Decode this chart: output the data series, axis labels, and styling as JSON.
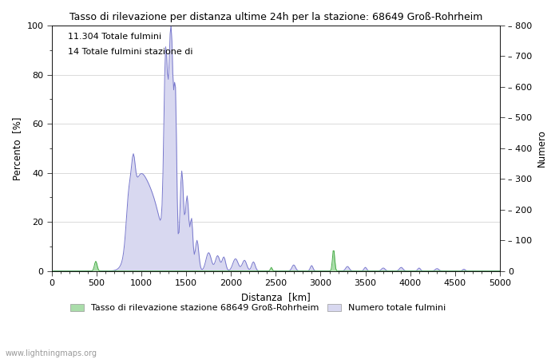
{
  "title": "Tasso di rilevazione per distanza ultime 24h per la stazione: 68649 Groß-Rohrheim",
  "xlabel": "Distanza  [km]",
  "ylabel_left": "Percento  [%]",
  "ylabel_right": "Numero",
  "annotation_line1": "11.304 Totale fulmini",
  "annotation_line2": "14 Totale fulmini stazione di",
  "legend_green": "Tasso di rilevazione stazione 68649 Groß-Rohrheim",
  "legend_blue": "Numero totale fulmini",
  "watermark": "www.lightningmaps.org",
  "xlim": [
    0,
    5000
  ],
  "ylim_left": [
    0,
    100
  ],
  "ylim_right": [
    0,
    800
  ],
  "yticks_left": [
    0,
    20,
    40,
    60,
    80,
    100
  ],
  "yticks_right": [
    0,
    100,
    200,
    300,
    400,
    500,
    600,
    700,
    800
  ],
  "xticks": [
    0,
    500,
    1000,
    1500,
    2000,
    2500,
    3000,
    3500,
    4000,
    4500,
    5000
  ],
  "green_color": "#aaddaa",
  "blue_fill_color": "#d8d8f0",
  "blue_line_color": "#7777cc",
  "green_line_color": "#44aa44",
  "background_color": "#ffffff",
  "grid_color": "#cccccc"
}
